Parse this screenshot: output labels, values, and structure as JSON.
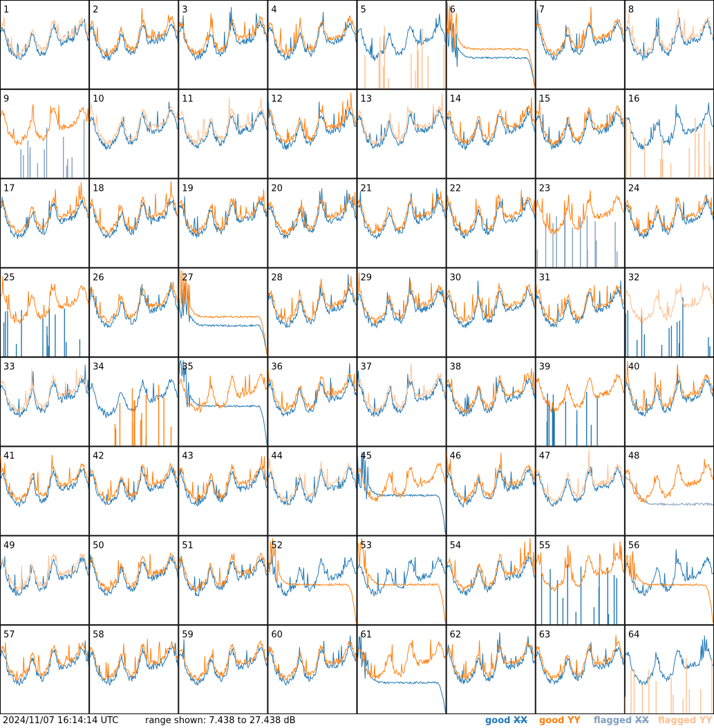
{
  "chart_data": {
    "type": "line",
    "panels": {
      "labels": [
        "1",
        "2",
        "3",
        "4",
        "5",
        "6",
        "7",
        "8",
        "9",
        "10",
        "11",
        "12",
        "13",
        "14",
        "15",
        "16",
        "17",
        "18",
        "19",
        "20",
        "21",
        "22",
        "23",
        "24",
        "25",
        "26",
        "27",
        "28",
        "29",
        "30",
        "31",
        "32",
        "33",
        "34",
        "35",
        "36",
        "37",
        "38",
        "39",
        "40",
        "41",
        "42",
        "43",
        "44",
        "45",
        "46",
        "47",
        "48",
        "49",
        "50",
        "51",
        "52",
        "53",
        "54",
        "55",
        "56",
        "57",
        "58",
        "59",
        "60",
        "61",
        "62",
        "63",
        "64"
      ],
      "columns": 8,
      "rows": 8,
      "styles": {
        "xx": [
          "n",
          "n",
          "n",
          "n",
          "n",
          "d",
          "n",
          "n",
          "fs",
          "n",
          "n",
          "n",
          "n",
          "n",
          "n",
          "n",
          "n",
          "n",
          "n",
          "n",
          "n",
          "n",
          "fs",
          "n",
          "s",
          "n",
          "d",
          "n",
          "n",
          "n",
          "n",
          "s",
          "n",
          "n",
          "dh",
          "n",
          "n",
          "n",
          "s",
          "n",
          "n",
          "n",
          "n",
          "n",
          "dh",
          "n",
          "n",
          "fdh",
          "n",
          "n",
          "n",
          "n",
          "n",
          "n",
          "s",
          "n",
          "n",
          "n",
          "n",
          "n",
          "d",
          "n",
          "n",
          "n"
        ],
        "yy": [
          "f",
          "n",
          "n",
          "n",
          "fs",
          "dh",
          "n",
          "f",
          "n",
          "ln",
          "ln",
          "n",
          "f",
          "n",
          "n",
          "fs",
          "n",
          "n",
          "n",
          "n",
          "n",
          "n",
          "n",
          "n",
          "n",
          "n",
          "dh",
          "n",
          "n",
          "n",
          "n",
          "ln",
          "ln",
          "s",
          "n",
          "n",
          "ln",
          "n",
          "n",
          "n",
          "n",
          "n",
          "n",
          "f",
          "n",
          "n",
          "f",
          "n",
          "ln",
          "n",
          "n",
          "dh",
          "dh",
          "n",
          "n",
          "dh",
          "n",
          "n",
          "n",
          "n",
          "n",
          "n",
          "n",
          "fs"
        ]
      }
    },
    "series": [
      {
        "key": "xx",
        "name": "good XX",
        "color": "#1f77b4"
      },
      {
        "key": "yy",
        "name": "good YY",
        "color": "#ff7f0e"
      },
      {
        "key": "flagged_xx",
        "name": "flagged XX",
        "color": "#7f9fbf"
      },
      {
        "key": "flagged_yy",
        "name": "flagged YY",
        "color": "#ffbf8f"
      }
    ],
    "y_range_db": [
      7.438,
      27.438
    ],
    "range_text": "range shown: 7.438 to 27.438 dB",
    "timestamp": "2024/11/07 16:14:14 UTC"
  },
  "legend": {
    "good_xx": {
      "word": "good",
      "pol": "XX"
    },
    "good_yy": {
      "word": "good",
      "pol": "YY"
    },
    "flagged_xx": {
      "word": "flagged",
      "pol": "XX"
    },
    "flagged_yy": {
      "word": "flagged",
      "pol": "YY"
    }
  }
}
